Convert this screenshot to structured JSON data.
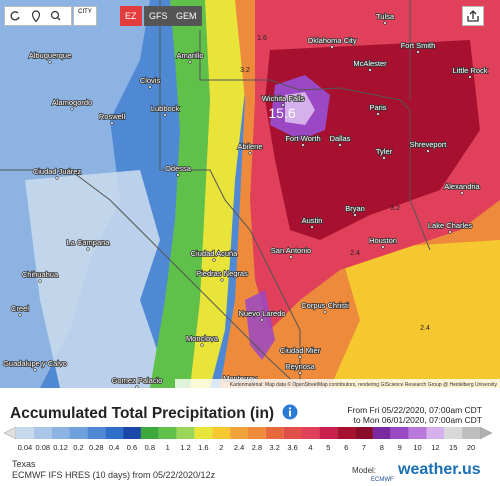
{
  "toolbar": {
    "city_button": "CITY",
    "models": [
      "EZ",
      "GFS",
      "GEM"
    ]
  },
  "map": {
    "cities": [
      "Albuquerque",
      "Amarillo",
      "Oklahoma City",
      "Tulsa",
      "Fort Smith",
      "McAlester",
      "Little Rock",
      "Clovis",
      "Roswell",
      "Lubbock",
      "Wichita Falls",
      "Alamogordo",
      "Paris",
      "Fort Worth",
      "Dallas",
      "Abilene",
      "Shreveport",
      "Tyler",
      "Ciudad Juárez",
      "Odessa",
      "Alexandria",
      "Austin",
      "Bryan",
      "Lake Charles",
      "Houston",
      "San Antonio",
      "Ciudad Acuña",
      "Piedras Negras",
      "Chihuahua",
      "Nuevo Laredo",
      "Corpus Christi",
      "Creel",
      "Monclova",
      "La Campana",
      "Guadalupe y Calvo",
      "Ciudad Mier",
      "Reynosa",
      "Monterrey",
      "Gomez Palacio"
    ],
    "labels": [
      "15.6",
      "1.6",
      "3.2",
      "2.4",
      "3.2",
      "2.4"
    ],
    "attribution": "Kartenmaterial: Map data © OpenStreetMap contributors, rendering GIScience Research Group @ Heidelberg University"
  },
  "legend": {
    "title": "Accumulated Total Precipitation (in)",
    "from": "From Fri 05/22/2020, 07:00am CDT",
    "to": "to Mon 06/01/2020, 07:00am CDT",
    "stops": [
      {
        "value": 0.04,
        "color": "#c6d8ec"
      },
      {
        "value": 0.08,
        "color": "#a9c6e8"
      },
      {
        "value": 0.12,
        "color": "#8db3e2"
      },
      {
        "value": 0.2,
        "color": "#6f9fdc"
      },
      {
        "value": 0.28,
        "color": "#4f89d4"
      },
      {
        "value": 0.4,
        "color": "#2e6fc8"
      },
      {
        "value": 0.6,
        "color": "#1a48a8"
      },
      {
        "value": 0.8,
        "color": "#3fa83c"
      },
      {
        "value": 1,
        "color": "#5fc04a"
      },
      {
        "value": 1.2,
        "color": "#9bd65a"
      },
      {
        "value": 1.6,
        "color": "#e8e43a"
      },
      {
        "value": 2,
        "color": "#f5c830"
      },
      {
        "value": 2.4,
        "color": "#f2a23a"
      },
      {
        "value": 2.8,
        "color": "#ee8a3c"
      },
      {
        "value": 3.2,
        "color": "#e8683e"
      },
      {
        "value": 3.6,
        "color": "#e04f4a"
      },
      {
        "value": 4,
        "color": "#e0405a"
      },
      {
        "value": 5,
        "color": "#c8204a"
      },
      {
        "value": 6,
        "color": "#a81030"
      },
      {
        "value": 7,
        "color": "#8a0c28"
      },
      {
        "value": 8,
        "color": "#7a2aa0"
      },
      {
        "value": 9,
        "color": "#9a48c4"
      },
      {
        "value": 10,
        "color": "#b878dc"
      },
      {
        "value": 12,
        "color": "#d6b0ea"
      },
      {
        "value": 15,
        "color": "#d8d8d8"
      },
      {
        "value": 20,
        "color": "#bdbdbd"
      }
    ]
  },
  "footer": {
    "region": "Texas",
    "run": "ECMWF IFS HRES (10 days) from 05/22/2020/12z",
    "model_label": "Model:",
    "model_logo": "ECMWF",
    "brand": "weather.us"
  }
}
